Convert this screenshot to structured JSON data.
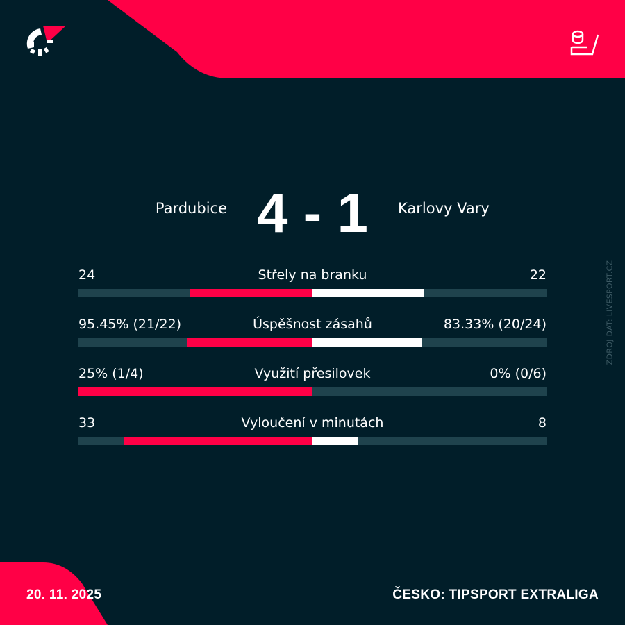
{
  "colors": {
    "background": "#011e29",
    "accent": "#ff0046",
    "track": "#1f434d",
    "away": "#ffffff"
  },
  "header": {
    "logo_icon": "flashscore-logo",
    "sport_icon": "hockey-stick-puck-icon"
  },
  "match": {
    "home_team": "Pardubice",
    "away_team": "Karlovy Vary",
    "home_score": "4",
    "away_score": "1",
    "separator": "-"
  },
  "stats": [
    {
      "label": "Střely na branku",
      "home": "24",
      "away": "22",
      "home_value": 24,
      "away_value": 22
    },
    {
      "label": "Úspěšnost zásahů",
      "home": "95.45% (21/22)",
      "away": "83.33% (20/24)",
      "home_value": 95.45,
      "away_value": 83.33
    },
    {
      "label": "Využití přesilovek",
      "home": "25% (1/4)",
      "away": "0% (0/6)",
      "home_value": 25,
      "away_value": 0
    },
    {
      "label": "Vyloučení v minutách",
      "home": "33",
      "away": "8",
      "home_value": 33,
      "away_value": 8
    }
  ],
  "footer": {
    "date": "20. 11. 2025",
    "league": "ČESKO: TIPSPORT EXTRALIGA"
  },
  "source": "ZDROJ DAT: LIVESPORT.CZ"
}
